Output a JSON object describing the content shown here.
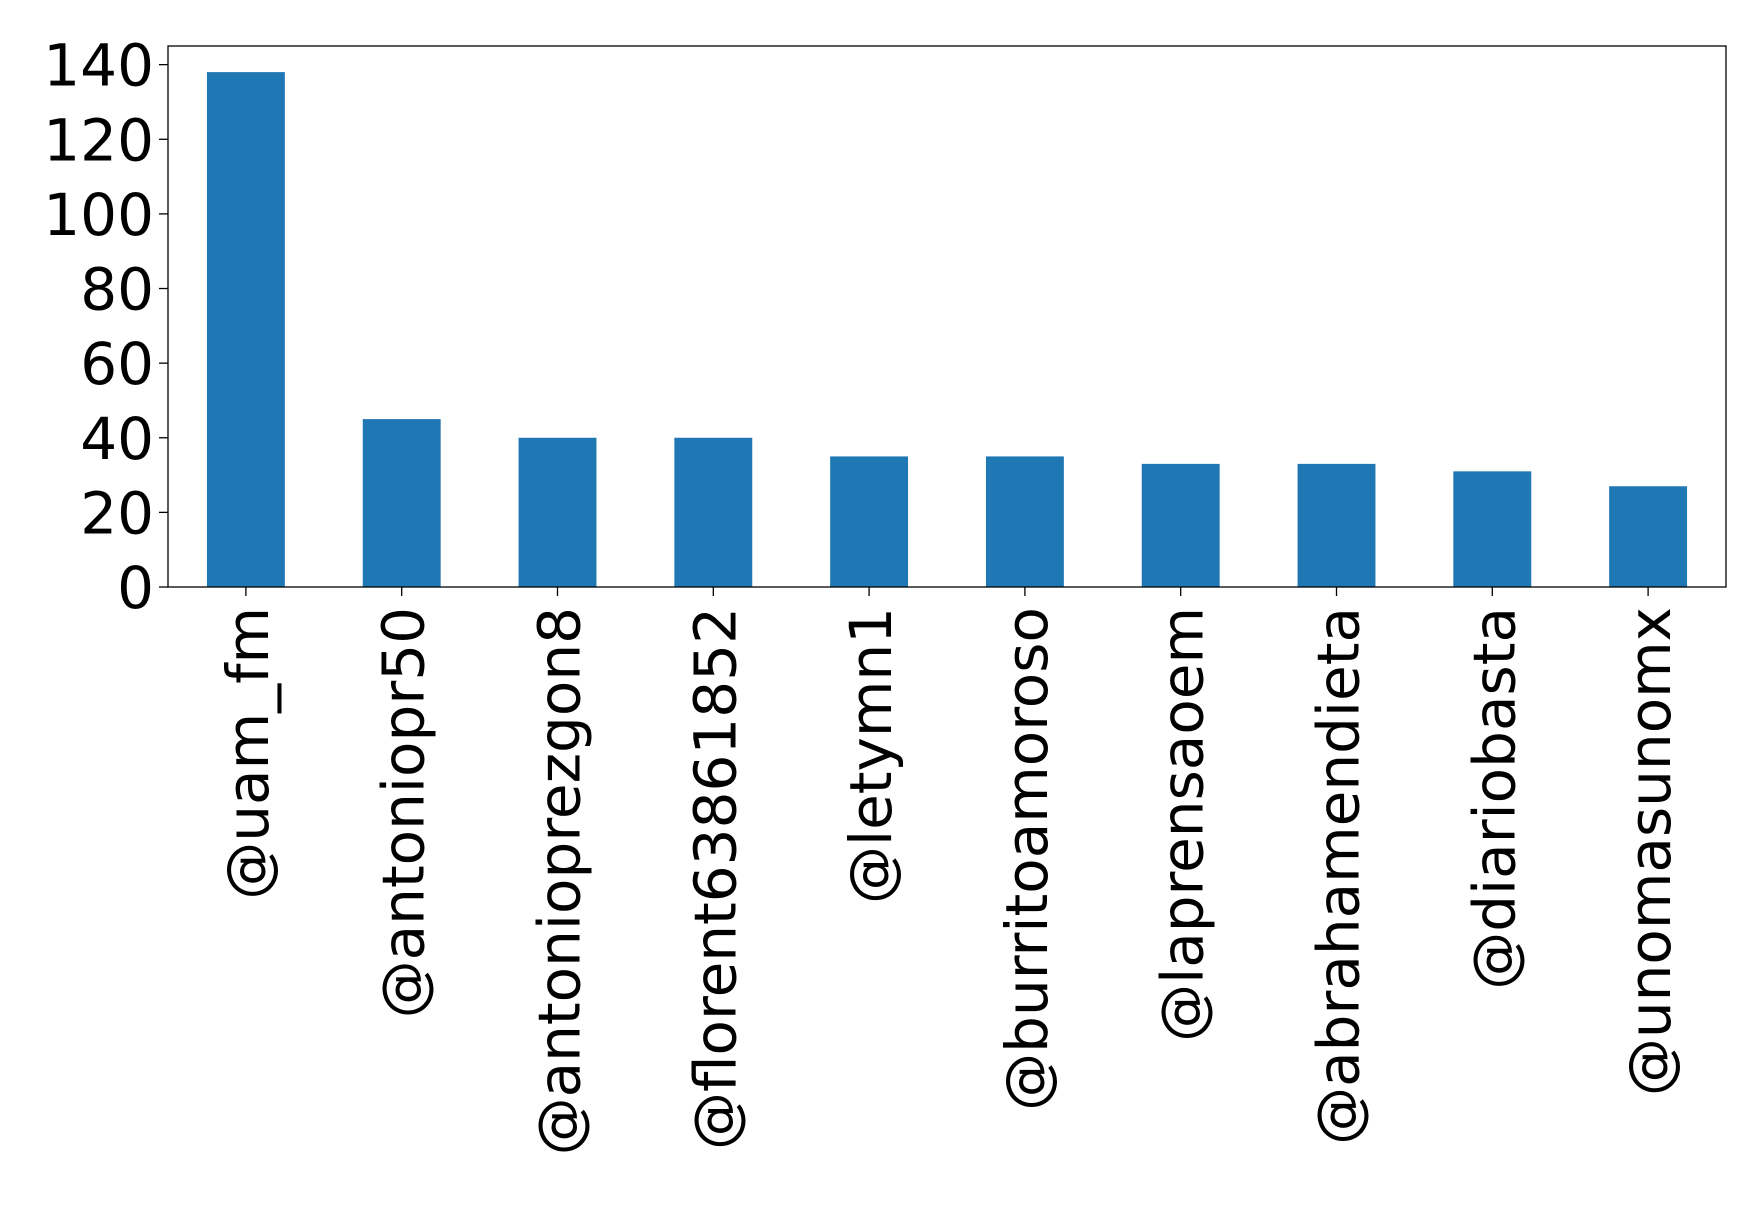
{
  "chart_data": {
    "type": "bar",
    "title": "",
    "xlabel": "",
    "ylabel": "",
    "categories": [
      "@uam_fm",
      "@antoniopr50",
      "@antonioprezgon8",
      "@florent63861852",
      "@letymn1",
      "@burritoamoroso",
      "@laprensaoem",
      "@abrahamendieta",
      "@diariobasta",
      "@unomasunomx"
    ],
    "values": [
      138,
      45,
      40,
      40,
      35,
      35,
      33,
      33,
      31,
      27
    ],
    "ylim": [
      0,
      145
    ],
    "yticks": [
      0,
      20,
      40,
      60,
      80,
      100,
      120,
      140
    ],
    "grid": false,
    "bar_color": "#1f77b4"
  }
}
